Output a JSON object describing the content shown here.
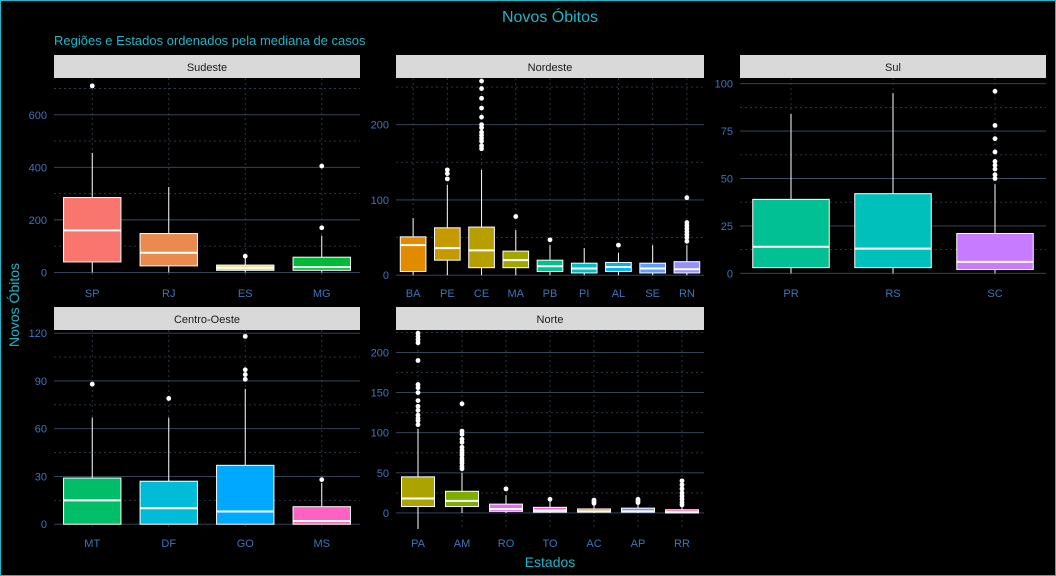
{
  "title": "Novos Óbitos",
  "subtitle": "Regiões e Estados ordenados pela mediana de casos",
  "chart_data": {
    "type": "boxplot",
    "title": "Novos Óbitos",
    "subtitle": "Regiões e Estados ordenados pela mediana de casos",
    "xlabel": "Estados",
    "ylabel": "Novos Óbitos",
    "grid": true,
    "legend": "none",
    "facets": [
      {
        "name": "Sudeste",
        "ylim": [
          -25,
          740
        ],
        "yticks": [
          0,
          200,
          400,
          600
        ],
        "categories": [
          "SP",
          "RJ",
          "ES",
          "MG"
        ],
        "boxes": [
          {
            "label": "SP",
            "color": "#F8766D",
            "q1": 40,
            "median": 160,
            "q3": 285,
            "whisker_low": 0,
            "whisker_high": 455,
            "outliers": [
              710
            ]
          },
          {
            "label": "RJ",
            "color": "#E98A4F",
            "q1": 25,
            "median": 75,
            "q3": 148,
            "whisker_low": 0,
            "whisker_high": 325,
            "outliers": []
          },
          {
            "label": "ES",
            "color": "#DDDB6E",
            "q1": 8,
            "median": 18,
            "q3": 28,
            "whisker_low": 0,
            "whisker_high": 55,
            "outliers": [
              62
            ]
          },
          {
            "label": "MG",
            "color": "#00BA38",
            "q1": 8,
            "median": 20,
            "q3": 58,
            "whisker_low": 0,
            "whisker_high": 140,
            "outliers": [
              170,
              405
            ]
          }
        ]
      },
      {
        "name": "Nordeste",
        "ylim": [
          -5,
          262
        ],
        "yticks": [
          0,
          100,
          200
        ],
        "categories": [
          "BA",
          "PE",
          "CE",
          "MA",
          "PB",
          "PI",
          "AL",
          "SE",
          "RN"
        ],
        "boxes": [
          {
            "label": "BA",
            "color": "#E28A00",
            "q1": 5,
            "median": 40,
            "q3": 51,
            "whisker_low": 0,
            "whisker_high": 76,
            "outliers": []
          },
          {
            "label": "PE",
            "color": "#C49A00",
            "q1": 20,
            "median": 36,
            "q3": 63,
            "whisker_low": 0,
            "whisker_high": 120,
            "outliers": [
              128,
              135,
              140
            ]
          },
          {
            "label": "CE",
            "color": "#B79F00",
            "q1": 10,
            "median": 33,
            "q3": 64,
            "whisker_low": 0,
            "whisker_high": 140,
            "outliers": [
              168,
              172,
              178,
              182,
              186,
              190,
              196,
              200,
              210,
              222,
              235,
              248,
              258
            ]
          },
          {
            "label": "MA",
            "color": "#A3A500",
            "q1": 10,
            "median": 20,
            "q3": 32,
            "whisker_low": 0,
            "whisker_high": 60,
            "outliers": [
              78
            ]
          },
          {
            "label": "PB",
            "color": "#00C08B",
            "q1": 5,
            "median": 12,
            "q3": 20,
            "whisker_low": 0,
            "whisker_high": 40,
            "outliers": [
              47
            ]
          },
          {
            "label": "PI",
            "color": "#00BFC4",
            "q1": 3,
            "median": 9,
            "q3": 16,
            "whisker_low": 0,
            "whisker_high": 36,
            "outliers": []
          },
          {
            "label": "AL",
            "color": "#00B4F0",
            "q1": 5,
            "median": 11,
            "q3": 17,
            "whisker_low": 0,
            "whisker_high": 30,
            "outliers": [
              40
            ]
          },
          {
            "label": "SE",
            "color": "#619CFF",
            "q1": 3,
            "median": 9,
            "q3": 16,
            "whisker_low": 0,
            "whisker_high": 40,
            "outliers": []
          },
          {
            "label": "RN",
            "color": "#9590FF",
            "q1": 3,
            "median": 8,
            "q3": 18,
            "whisker_low": 0,
            "whisker_high": 40,
            "outliers": [
              45,
              50,
              54,
              58,
              62,
              66,
              70,
              103
            ]
          }
        ]
      },
      {
        "name": "Sul",
        "ylim": [
          -3,
          103
        ],
        "yticks": [
          0,
          25,
          50,
          75,
          100
        ],
        "categories": [
          "PR",
          "RS",
          "SC"
        ],
        "boxes": [
          {
            "label": "PR",
            "color": "#00C094",
            "q1": 3,
            "median": 14,
            "q3": 39,
            "whisker_low": 0,
            "whisker_high": 84,
            "outliers": []
          },
          {
            "label": "RS",
            "color": "#00C0BB",
            "q1": 3,
            "median": 13,
            "q3": 42,
            "whisker_low": 0,
            "whisker_high": 95,
            "outliers": []
          },
          {
            "label": "SC",
            "color": "#C77CFF",
            "q1": 2,
            "median": 6,
            "q3": 21,
            "whisker_low": 0,
            "whisker_high": 47,
            "outliers": [
              50,
              52,
              55,
              57,
              59,
              64,
              71,
              78,
              96
            ]
          }
        ]
      },
      {
        "name": "Centro-Oeste",
        "ylim": [
          -3,
          122
        ],
        "yticks": [
          0,
          30,
          60,
          90,
          120
        ],
        "categories": [
          "MT",
          "DF",
          "GO",
          "MS"
        ],
        "boxes": [
          {
            "label": "MT",
            "color": "#00BE67",
            "q1": 0,
            "median": 15,
            "q3": 29,
            "whisker_low": 0,
            "whisker_high": 67,
            "outliers": [
              88
            ]
          },
          {
            "label": "DF",
            "color": "#00BCD8",
            "q1": 0,
            "median": 10,
            "q3": 27,
            "whisker_low": 0,
            "whisker_high": 67,
            "outliers": [
              79
            ]
          },
          {
            "label": "GO",
            "color": "#00A9FF",
            "q1": 0,
            "median": 8,
            "q3": 37,
            "whisker_low": 0,
            "whisker_high": 85,
            "outliers": [
              91,
              94,
              97,
              118
            ]
          },
          {
            "label": "MS",
            "color": "#FF61C3",
            "q1": 0,
            "median": 2,
            "q3": 11,
            "whisker_low": 0,
            "whisker_high": 26,
            "outliers": [
              28
            ]
          }
        ]
      },
      {
        "name": "Norte",
        "ylim": [
          -20,
          228
        ],
        "yticks": [
          0,
          50,
          100,
          150,
          200
        ],
        "categories": [
          "PA",
          "AM",
          "RO",
          "TO",
          "AC",
          "AP",
          "RR"
        ],
        "boxes": [
          {
            "label": "PA",
            "color": "#ABA300",
            "q1": 8,
            "median": 18,
            "q3": 45,
            "whisker_low": -20,
            "whisker_high": 105,
            "outliers": [
              110,
              115,
              118,
              122,
              128,
              133,
              140,
              150,
              156,
              160,
              190,
              212,
              216,
              220,
              224
            ]
          },
          {
            "label": "AM",
            "color": "#7CAE00",
            "q1": 8,
            "median": 15,
            "q3": 27,
            "whisker_low": 0,
            "whisker_high": 50,
            "outliers": [
              55,
              58,
              62,
              65,
              68,
              72,
              75,
              78,
              82,
              88,
              92,
              98,
              102,
              136
            ]
          },
          {
            "label": "RO",
            "color": "#E76BF3",
            "q1": 2,
            "median": 5,
            "q3": 11,
            "whisker_low": 0,
            "whisker_high": 22,
            "outliers": [
              30
            ]
          },
          {
            "label": "TO",
            "color": "#F564E3",
            "q1": 1,
            "median": 3,
            "q3": 7,
            "whisker_low": 0,
            "whisker_high": 14,
            "outliers": [
              17
            ]
          },
          {
            "label": "AC",
            "color": "#E68613",
            "q1": 1,
            "median": 2,
            "q3": 5,
            "whisker_low": 0,
            "whisker_high": 10,
            "outliers": [
              12,
              14,
              16
            ]
          },
          {
            "label": "AP",
            "color": "#8494FF",
            "q1": 1,
            "median": 2,
            "q3": 6,
            "whisker_low": 0,
            "whisker_high": 12,
            "outliers": [
              13,
              15,
              17
            ]
          },
          {
            "label": "RR",
            "color": "#FF65AC",
            "q1": 0,
            "median": 1,
            "q3": 4,
            "whisker_low": 0,
            "whisker_high": 8,
            "outliers": [
              10,
              13,
              17,
              21,
              25,
              30,
              35,
              40
            ]
          }
        ]
      }
    ]
  }
}
